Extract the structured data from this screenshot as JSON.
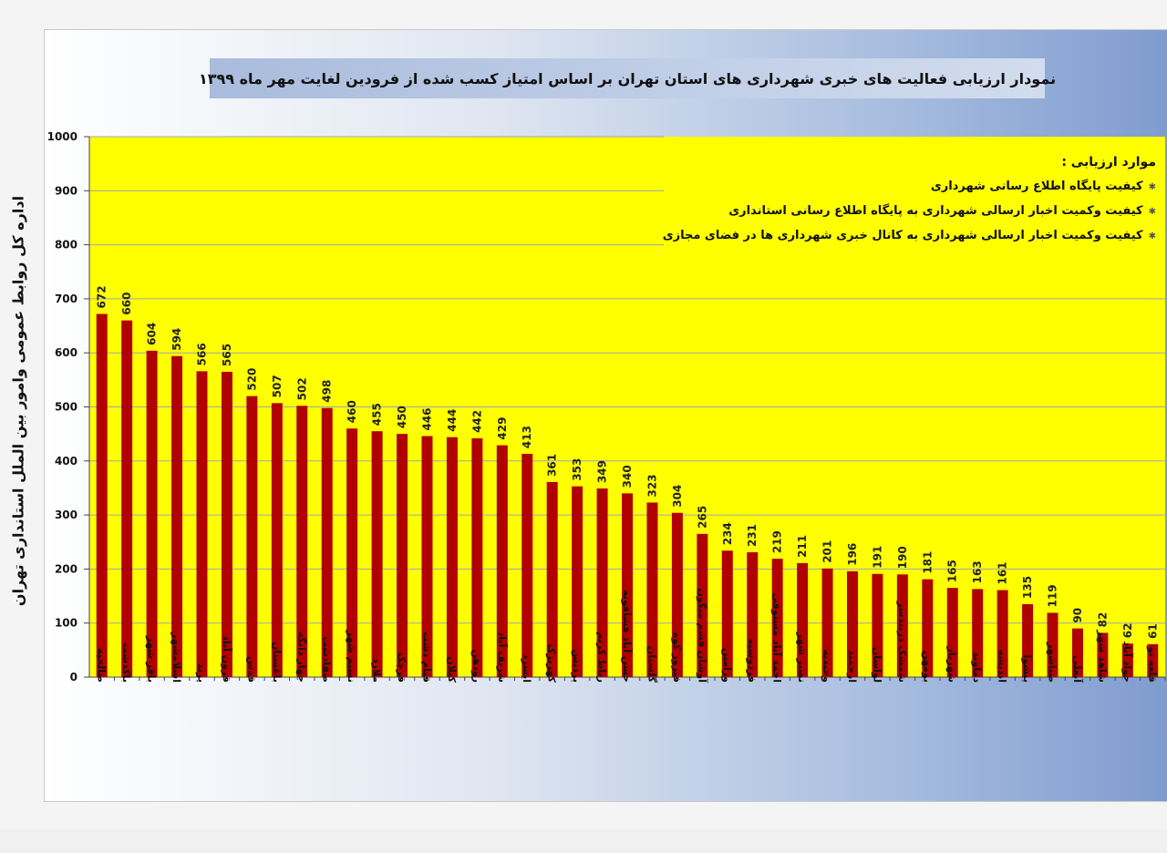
{
  "chart_data": {
    "type": "bar",
    "title": "نمودار ارزیابی فعالیت های خبری شهرداری های استان تهران بر اساس امتیاز کسب شده از فرودین لغایت مهر ماه ۱۳۹۹",
    "ylabel": "اداره کل روابط عمومی وامور بین الملل استانداری تهران",
    "xlabel": "",
    "ylim": [
      0,
      1000
    ],
    "yticks": [
      "0",
      "100",
      "200",
      "300",
      "400",
      "500",
      "600",
      "700",
      "800",
      "900",
      "1000"
    ],
    "grid": true,
    "bar_color": "#b00000",
    "plot_background": "#ffff00",
    "categories": [
      "صالحیه",
      "باکدشت",
      "باقر شهر",
      "اسلامشهر",
      "پرند",
      "قرون آباد",
      "قدس",
      "باغستان",
      "چهار دانگه",
      "صفادشت",
      "نسیم شهر",
      "ملارد",
      "قرچک",
      "قیام دشت",
      "کیلان",
      "رودهن",
      "شریف آباد",
      "ایسرد",
      "کهریزک",
      "پردیس",
      "رباط کریم",
      "حسن آباد فشافویه",
      "گلستان",
      "فیروز کوه",
      "آوشان فشم میگون",
      "ورامین",
      "فردوسیه",
      "احمد آباد مستوفی",
      "نصیر شهر",
      "وحیدیه",
      "ارجمند",
      "لواسان",
      "شمشک دربندسر",
      "بومهن",
      "شهریار",
      "دماوند",
      "اندیشه",
      "پیشوا",
      "صباشهر",
      "آبعلی",
      "شاهد شهر",
      "جواد آباد",
      "قلعه نو"
    ],
    "values": [
      672,
      660,
      604,
      594,
      566,
      565,
      520,
      507,
      502,
      498,
      460,
      455,
      450,
      446,
      444,
      442,
      429,
      413,
      361,
      353,
      349,
      340,
      323,
      304,
      265,
      234,
      231,
      219,
      211,
      201,
      196,
      191,
      190,
      181,
      165,
      163,
      161,
      135,
      119,
      90,
      82,
      62,
      61
    ]
  },
  "legend": {
    "title": "موارد ارزیابی :",
    "items": [
      "کیفیت پایگاه اطلاع رسانی شهرداری",
      "کیفیت وکمیت اخبار ارسالی شهرداری به پایگاه اطلاع رسانی استانداری",
      "کیفیت وکمیت اخبار ارسالی شهرداری به کانال خبری شهرداری ها در فضای مجازی"
    ]
  }
}
